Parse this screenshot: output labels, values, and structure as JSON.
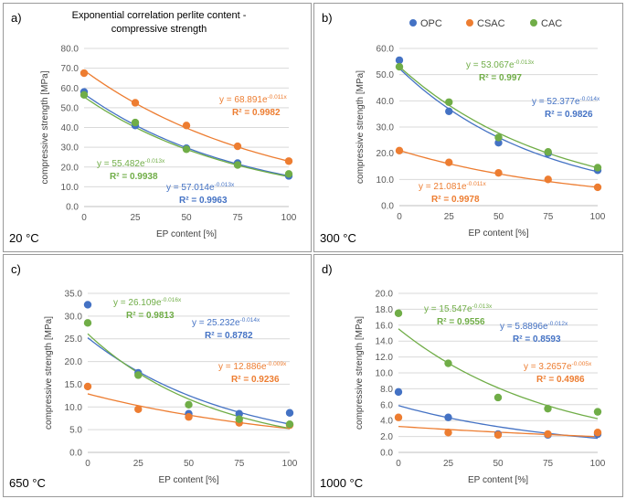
{
  "figure_title_line1": "Exponential correlation perlite content -",
  "figure_title_line2": "compressive strength",
  "legend": [
    {
      "name": "OPC",
      "color": "#4472c4"
    },
    {
      "name": "CSAC",
      "color": "#ed7d31"
    },
    {
      "name": "CAC",
      "color": "#70ad47"
    }
  ],
  "chart_data": [
    {
      "type": "scatter",
      "panel_label": "a)",
      "temperature": "20 °C",
      "xlabel": "EP content [%]",
      "ylabel": "compressive strength [MPa]",
      "x": [
        0,
        25,
        50,
        75,
        100
      ],
      "xticks": [
        "0",
        "25",
        "50",
        "75",
        "100"
      ],
      "ylim": [
        0,
        80
      ],
      "ystep": 10,
      "ydecimals": 1,
      "grid": true,
      "series": [
        {
          "name": "OPC",
          "color": "#4472c4",
          "values": [
            58.0,
            41.0,
            29.5,
            22.0,
            15.5
          ],
          "fit": {
            "a": 57.014,
            "b": -0.013,
            "eq_base": "y = 57.014e",
            "eq_exp": "-0.013x",
            "r2": "R² = 0.9963"
          }
        },
        {
          "name": "CSAC",
          "color": "#ed7d31",
          "values": [
            67.5,
            52.5,
            41.0,
            30.5,
            23.0
          ],
          "fit": {
            "a": 68.891,
            "b": -0.011,
            "eq_base": "y = 68.891e",
            "eq_exp": "-0.011x",
            "r2": "R² = 0.9982"
          }
        },
        {
          "name": "CAC",
          "color": "#70ad47",
          "values": [
            56.5,
            42.5,
            29.0,
            21.0,
            16.5
          ],
          "fit": {
            "a": 55.482,
            "b": -0.013,
            "eq_base": "y = 55.482e",
            "eq_exp": "-0.013x",
            "r2": "R² = 0.9938"
          }
        }
      ]
    },
    {
      "type": "scatter",
      "panel_label": "b)",
      "temperature": "300 °C",
      "xlabel": "EP content [%]",
      "ylabel": "compressive strength [MPa]",
      "x": [
        0,
        25,
        50,
        75,
        100
      ],
      "xticks": [
        "0",
        "25",
        "50",
        "75",
        "100"
      ],
      "ylim": [
        0,
        60
      ],
      "ystep": 10,
      "ydecimals": 1,
      "grid": true,
      "series": [
        {
          "name": "OPC",
          "color": "#4472c4",
          "values": [
            55.5,
            36.0,
            24.0,
            20.0,
            13.5
          ],
          "fit": {
            "a": 52.377,
            "b": -0.014,
            "eq_base": "y = 52.377e",
            "eq_exp": "-0.014x",
            "r2": "R² = 0.9826"
          }
        },
        {
          "name": "CSAC",
          "color": "#ed7d31",
          "values": [
            21.0,
            16.5,
            12.5,
            10.0,
            7.0
          ],
          "fit": {
            "a": 21.081,
            "b": -0.011,
            "eq_base": "y = 21.081e",
            "eq_exp": "-0.011x",
            "r2": "R² = 0.9978"
          }
        },
        {
          "name": "CAC",
          "color": "#70ad47",
          "values": [
            53.0,
            39.5,
            26.0,
            20.5,
            14.5
          ],
          "fit": {
            "a": 53.067,
            "b": -0.013,
            "eq_base": "y = 53.067e",
            "eq_exp": "-0.013x",
            "r2": "R² = 0.997"
          }
        }
      ]
    },
    {
      "type": "scatter",
      "panel_label": "c)",
      "temperature": "650 °C",
      "xlabel": "EP content [%]",
      "ylabel": "compressive strength [MPa]",
      "x": [
        0,
        25,
        50,
        75,
        100
      ],
      "xticks": [
        "0",
        "25",
        "50",
        "75",
        "100"
      ],
      "ylim": [
        0,
        35
      ],
      "ystep": 5,
      "ydecimals": 1,
      "grid": true,
      "series": [
        {
          "name": "OPC",
          "color": "#4472c4",
          "values": [
            32.5,
            17.5,
            8.5,
            8.5,
            8.7
          ],
          "fit": {
            "a": 25.232,
            "b": -0.014,
            "eq_base": "y = 25.232e",
            "eq_exp": "-0.014x",
            "r2": "R² = 0.8782"
          }
        },
        {
          "name": "CSAC",
          "color": "#ed7d31",
          "values": [
            14.5,
            9.5,
            7.8,
            6.5,
            6.0
          ],
          "fit": {
            "a": 12.886,
            "b": -0.009,
            "eq_base": "y = 12.886e",
            "eq_exp": "-0.009x",
            "r2": "R² = 0.9236"
          }
        },
        {
          "name": "CAC",
          "color": "#70ad47",
          "values": [
            28.5,
            17.0,
            10.5,
            7.3,
            6.2
          ],
          "fit": {
            "a": 26.109,
            "b": -0.016,
            "eq_base": "y = 26.109e",
            "eq_exp": "-0.016x",
            "r2": "R² = 0.9813"
          }
        }
      ]
    },
    {
      "type": "scatter",
      "panel_label": "d)",
      "temperature": "1000 °C",
      "xlabel": "EP content [%]",
      "ylabel": "compressive strength [MPa]",
      "x": [
        0,
        25,
        50,
        75,
        100
      ],
      "xticks": [
        "0",
        "25",
        "50",
        "75",
        "100"
      ],
      "ylim": [
        0,
        20
      ],
      "ystep": 2,
      "ydecimals": 1,
      "grid": true,
      "series": [
        {
          "name": "OPC",
          "color": "#4472c4",
          "values": [
            7.6,
            4.4,
            2.3,
            2.2,
            2.3
          ],
          "fit": {
            "a": 5.8896,
            "b": -0.012,
            "eq_base": "y = 5.8896e",
            "eq_exp": "-0.012x",
            "r2": "R² = 0.8593"
          }
        },
        {
          "name": "CSAC",
          "color": "#ed7d31",
          "values": [
            4.4,
            2.5,
            2.2,
            2.3,
            2.5
          ],
          "fit": {
            "a": 3.2657,
            "b": -0.005,
            "eq_base": "y = 3.2657e",
            "eq_exp": "-0.005x",
            "r2": "R² = 0.4986"
          }
        },
        {
          "name": "CAC",
          "color": "#70ad47",
          "values": [
            17.5,
            11.2,
            6.9,
            5.5,
            5.1
          ],
          "fit": {
            "a": 15.547,
            "b": -0.013,
            "eq_base": "y = 15.547e",
            "eq_exp": "-0.013x",
            "r2": "R² = 0.9556"
          }
        }
      ]
    }
  ]
}
